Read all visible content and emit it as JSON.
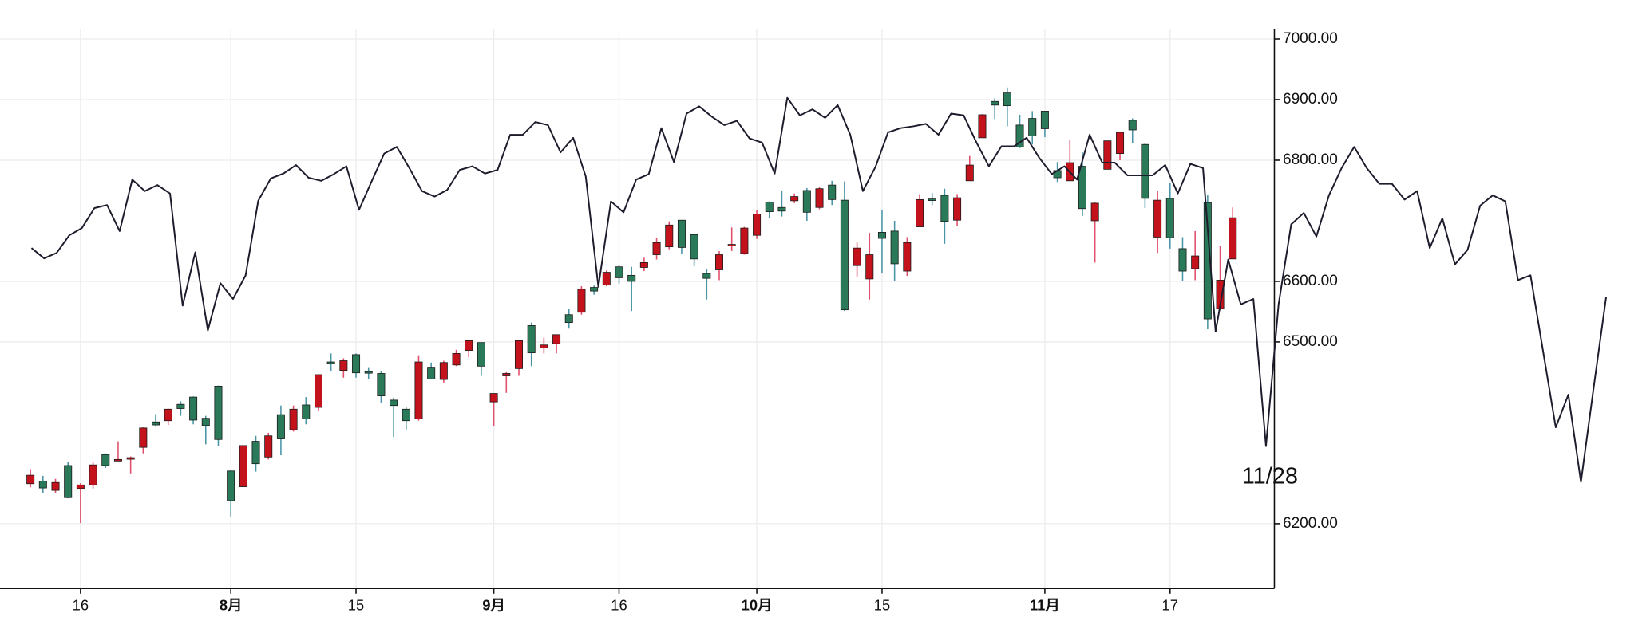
{
  "chart_data": {
    "type": "candlestick",
    "colors": {
      "up": "#c4121c",
      "down": "#2a7a5a",
      "up_wick": "#e0506c",
      "down_wick": "#4a96a8",
      "border": "#1a1a1a"
    },
    "ylim": [
      6093,
      7016
    ],
    "yticks": [
      {
        "value": 6200,
        "label": "6200.00"
      },
      {
        "value": 6500,
        "label": "6500.00"
      },
      {
        "value": 6600,
        "label": "6600.00"
      },
      {
        "value": 6800,
        "label": "6800.00"
      },
      {
        "value": 6900,
        "label": "6900.00"
      },
      {
        "value": 7000,
        "label": "7000.00"
      }
    ],
    "xticks": [
      {
        "value": 4,
        "label": "16"
      },
      {
        "value": 16,
        "label": "8月",
        "bold": true
      },
      {
        "value": 26,
        "label": "15"
      },
      {
        "value": 37,
        "label": "9月",
        "bold": true
      },
      {
        "value": 47,
        "label": "16"
      },
      {
        "value": 58,
        "label": "10月",
        "bold": true
      },
      {
        "value": 68,
        "label": "15"
      },
      {
        "value": 81,
        "label": "11月",
        "bold": true
      },
      {
        "value": 91,
        "label": "17"
      }
    ],
    "grid": true,
    "annotation": "11/28",
    "ohlc": [
      [
        6266,
        6290,
        6260,
        6280
      ],
      [
        6270,
        6279,
        6251,
        6259
      ],
      [
        6255,
        6274,
        6250,
        6268
      ],
      [
        6296,
        6302,
        6242,
        6243
      ],
      [
        6258,
        6267,
        6201,
        6264
      ],
      [
        6264,
        6301,
        6258,
        6297
      ],
      [
        6314,
        6316,
        6292,
        6296
      ],
      [
        6305,
        6336,
        6303,
        6306
      ],
      [
        6307,
        6311,
        6283,
        6309
      ],
      [
        6326,
        6359,
        6316,
        6358
      ],
      [
        6368,
        6381,
        6360,
        6363
      ],
      [
        6370,
        6390,
        6363,
        6389
      ],
      [
        6397,
        6402,
        6378,
        6390
      ],
      [
        6409,
        6410,
        6364,
        6371
      ],
      [
        6374,
        6378,
        6331,
        6362
      ],
      [
        6427,
        6428,
        6328,
        6339
      ],
      [
        6287,
        6288,
        6212,
        6238
      ],
      [
        6261,
        6329,
        6261,
        6329
      ],
      [
        6336,
        6345,
        6286,
        6299
      ],
      [
        6310,
        6350,
        6306,
        6345
      ],
      [
        6380,
        6395,
        6313,
        6340
      ],
      [
        6355,
        6395,
        6352,
        6389
      ],
      [
        6396,
        6409,
        6364,
        6373
      ],
      [
        6392,
        6446,
        6386,
        6446
      ],
      [
        6467,
        6481,
        6452,
        6466
      ],
      [
        6453,
        6473,
        6441,
        6469
      ],
      [
        6479,
        6481,
        6441,
        6449
      ],
      [
        6451,
        6457,
        6438,
        6449
      ],
      [
        6448,
        6452,
        6400,
        6411
      ],
      [
        6404,
        6408,
        6343,
        6395
      ],
      [
        6389,
        6393,
        6355,
        6370
      ],
      [
        6373,
        6478,
        6370,
        6467
      ],
      [
        6457,
        6466,
        6438,
        6439
      ],
      [
        6438,
        6469,
        6433,
        6466
      ],
      [
        6462,
        6487,
        6460,
        6481
      ],
      [
        6486,
        6504,
        6475,
        6502
      ],
      [
        6499,
        6499,
        6444,
        6460
      ],
      [
        6401,
        6415,
        6361,
        6415
      ],
      [
        6444,
        6450,
        6416,
        6448
      ],
      [
        6456,
        6502,
        6444,
        6502
      ],
      [
        6527,
        6532,
        6460,
        6482
      ],
      [
        6490,
        6507,
        6481,
        6495
      ],
      [
        6497,
        6512,
        6481,
        6512
      ],
      [
        6545,
        6555,
        6522,
        6532
      ],
      [
        6549,
        6592,
        6545,
        6587
      ],
      [
        6590,
        6593,
        6578,
        6584
      ],
      [
        6594,
        6618,
        6592,
        6615
      ],
      [
        6624,
        6627,
        6596,
        6606
      ],
      [
        6610,
        6624,
        6551,
        6600
      ],
      [
        6623,
        6639,
        6617,
        6631
      ],
      [
        6644,
        6671,
        6636,
        6664
      ],
      [
        6657,
        6699,
        6653,
        6693
      ],
      [
        6701,
        6701,
        6646,
        6656
      ],
      [
        6677,
        6678,
        6625,
        6637
      ],
      [
        6613,
        6620,
        6570,
        6605
      ],
      [
        6619,
        6650,
        6602,
        6644
      ],
      [
        6660,
        6689,
        6650,
        6661
      ],
      [
        6646,
        6690,
        6644,
        6688
      ],
      [
        6676,
        6718,
        6670,
        6711
      ],
      [
        6731,
        6732,
        6704,
        6715
      ],
      [
        6722,
        6750,
        6707,
        6716
      ],
      [
        6733,
        6745,
        6729,
        6740
      ],
      [
        6750,
        6754,
        6700,
        6714
      ],
      [
        6722,
        6756,
        6719,
        6753
      ],
      [
        6759,
        6766,
        6726,
        6735
      ],
      [
        6734,
        6765,
        6551,
        6553
      ],
      [
        6626,
        6664,
        6608,
        6655
      ],
      [
        6604,
        6680,
        6570,
        6644
      ],
      [
        6681,
        6718,
        6613,
        6671
      ],
      [
        6683,
        6700,
        6600,
        6629
      ],
      [
        6617,
        6673,
        6609,
        6664
      ],
      [
        6690,
        6744,
        6690,
        6735
      ],
      [
        6736,
        6746,
        6726,
        6735
      ],
      [
        6742,
        6753,
        6662,
        6699
      ],
      [
        6701,
        6744,
        6692,
        6738
      ],
      [
        6766,
        6807,
        6766,
        6792
      ],
      [
        6837,
        6876,
        6837,
        6875
      ],
      [
        6897,
        6902,
        6868,
        6891
      ],
      [
        6911,
        6920,
        6856,
        6890
      ],
      [
        6858,
        6875,
        6820,
        6822
      ],
      [
        6869,
        6881,
        6826,
        6840
      ],
      [
        6881,
        6881,
        6838,
        6852
      ],
      [
        6783,
        6797,
        6764,
        6771
      ],
      [
        6766,
        6833,
        6766,
        6796
      ],
      [
        6790,
        6813,
        6708,
        6720
      ],
      [
        6700,
        6731,
        6631,
        6729
      ],
      [
        6785,
        6832,
        6785,
        6832
      ],
      [
        6811,
        6847,
        6800,
        6846
      ],
      [
        6866,
        6869,
        6828,
        6850
      ],
      [
        6826,
        6828,
        6721,
        6737
      ],
      [
        6673,
        6749,
        6647,
        6734
      ],
      [
        6737,
        6763,
        6654,
        6672
      ],
      [
        6654,
        6673,
        6600,
        6617
      ],
      [
        6621,
        6683,
        6602,
        6642
      ],
      [
        6730,
        6742,
        6521,
        6538
      ],
      [
        6555,
        6658,
        6552,
        6602
      ],
      [
        6637,
        6722,
        6637,
        6705
      ]
    ],
    "line": {
      "color": "#1c1c2c",
      "values": [
        6655,
        6638,
        6647,
        6676,
        6688,
        6721,
        6726,
        6683,
        6768,
        6749,
        6759,
        6745,
        6560,
        6648,
        6519,
        6597,
        6571,
        6610,
        6733,
        6770,
        6778,
        6792,
        6771,
        6766,
        6777,
        6790,
        6718,
        6765,
        6811,
        6822,
        6787,
        6749,
        6740,
        6751,
        6784,
        6790,
        6778,
        6784,
        6842,
        6842,
        6863,
        6858,
        6813,
        6837,
        6773,
        6591,
        6732,
        6714,
        6768,
        6777,
        6853,
        6797,
        6877,
        6889,
        6872,
        6858,
        6865,
        6836,
        6829,
        6778,
        6903,
        6874,
        6884,
        6870,
        6891,
        6842,
        6749,
        6789,
        6846,
        6853,
        6856,
        6860,
        6842,
        6877,
        6874,
        6830,
        6790,
        6823,
        6823,
        6837,
        6804,
        6777,
        6790,
        6768,
        6842,
        6796,
        6796,
        6775,
        6775,
        6775,
        6792,
        6745,
        6794,
        6787,
        6517,
        6636,
        6562,
        6571,
        6328,
        6562,
        6694,
        6713,
        6674,
        6742,
        6787,
        6822,
        6787,
        6761,
        6761,
        6735,
        6749,
        6655,
        6704,
        6628,
        6652,
        6725,
        6742,
        6732,
        6602,
        6610,
        6484,
        6359,
        6413,
        6269,
        6423,
        6574
      ]
    }
  }
}
